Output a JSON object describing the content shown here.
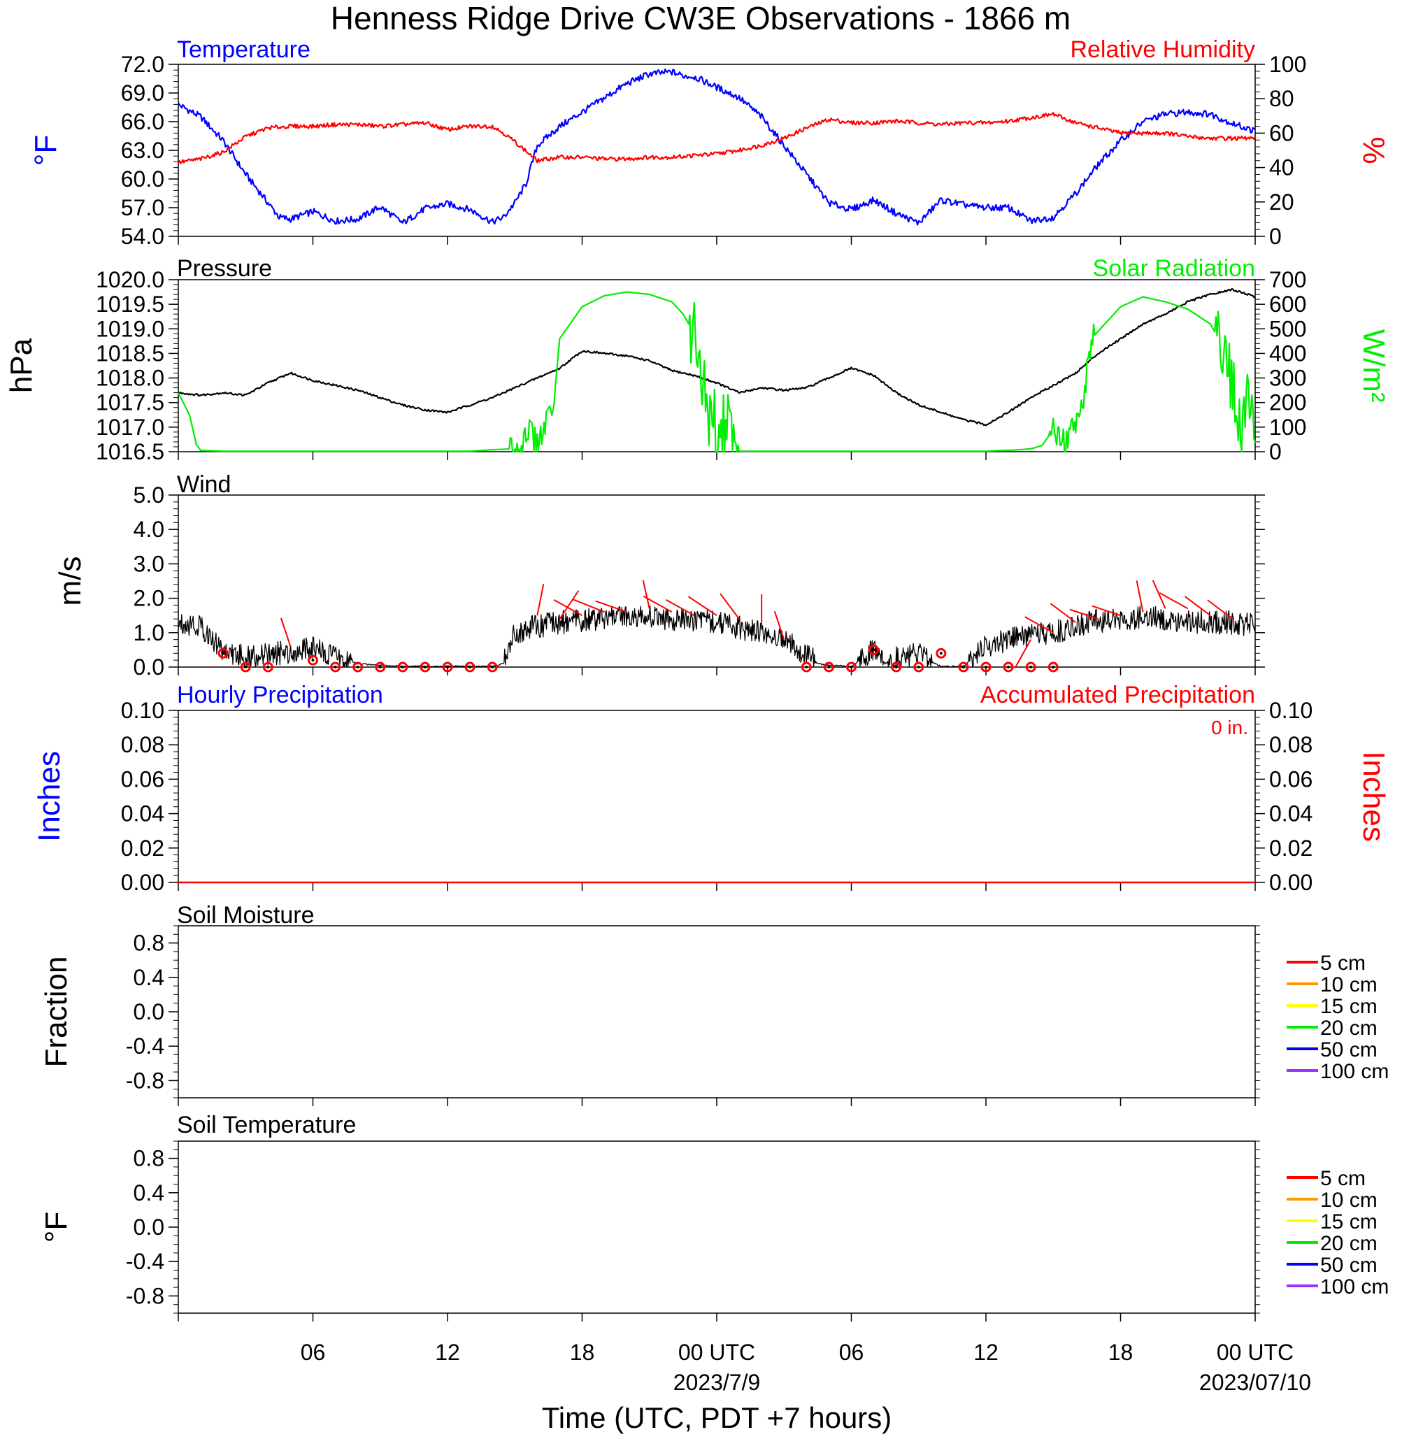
{
  "title": "Henness Ridge Drive CW3E Observations - 1866 m",
  "xaxis": {
    "ticks": [
      {
        "h": 6,
        "label": "06"
      },
      {
        "h": 12,
        "label": "12"
      },
      {
        "h": 18,
        "label": "18"
      },
      {
        "h": 24,
        "label": "00 UTC",
        "sub": "2023/7/9"
      },
      {
        "h": 30,
        "label": "06"
      },
      {
        "h": 36,
        "label": "12"
      },
      {
        "h": 42,
        "label": "18"
      },
      {
        "h": 48,
        "label": "00 UTC",
        "sub": "2023/07/10"
      }
    ],
    "label": "Time (UTC, PDT +7 hours)"
  },
  "panels": {
    "temperature": {
      "left_title": "Temperature",
      "right_title": "Relative Humidity",
      "left_unit": "°F",
      "right_unit": "%",
      "left_ticks": [
        "72.0",
        "69.0",
        "66.0",
        "63.0",
        "60.0",
        "57.0",
        "54.0"
      ],
      "right_ticks": [
        "100",
        "80",
        "60",
        "40",
        "20",
        "0"
      ]
    },
    "pressure": {
      "left_title": "Pressure",
      "right_title": "Solar Radiation",
      "left_unit": "hPa",
      "right_unit": "W/m²",
      "left_ticks": [
        "1020.0",
        "1019.5",
        "1019.0",
        "1018.5",
        "1018.0",
        "1017.5",
        "1017.0",
        "1016.5"
      ],
      "right_ticks": [
        "700",
        "600",
        "500",
        "400",
        "300",
        "200",
        "100",
        "0"
      ]
    },
    "wind": {
      "left_title": "Wind",
      "left_unit": "m/s",
      "left_ticks": [
        "5.0",
        "4.0",
        "3.0",
        "2.0",
        "1.0",
        "0.0"
      ]
    },
    "precip": {
      "left_title": "Hourly Precipitation",
      "right_title": "Accumulated Precipitation",
      "accum_text": "0 in.",
      "left_unit": "Inches",
      "right_unit": "Inches",
      "left_ticks": [
        "0.10",
        "0.08",
        "0.06",
        "0.04",
        "0.02",
        "0.00"
      ],
      "right_ticks": [
        "0.10",
        "0.08",
        "0.06",
        "0.04",
        "0.02",
        "0.00"
      ]
    },
    "soil_moisture": {
      "left_title": "Soil Moisture",
      "left_unit": "Fraction",
      "left_ticks": [
        "0.8",
        "0.4",
        "0.0",
        "-0.4",
        "-0.8"
      ]
    },
    "soil_temperature": {
      "left_title": "Soil Temperature",
      "left_unit": "°F",
      "left_ticks": [
        "0.8",
        "0.4",
        "0.0",
        "-0.4",
        "-0.8"
      ]
    }
  },
  "soil_legend": [
    {
      "label": "5 cm",
      "color": "#ff0000"
    },
    {
      "label": "10 cm",
      "color": "#ff9900"
    },
    {
      "label": "15 cm",
      "color": "#ffff00"
    },
    {
      "label": "20 cm",
      "color": "#00ee00"
    },
    {
      "label": "50 cm",
      "color": "#0000ff"
    },
    {
      "label": "100 cm",
      "color": "#9933ff"
    }
  ],
  "colors": {
    "temperature": "#0000ff",
    "humidity": "#ff0000",
    "pressure": "#000000",
    "solar": "#00ee00",
    "wind": "#000000",
    "barb": "#ff0000",
    "accum": "#ff0000"
  },
  "chart_data": [
    {
      "type": "line",
      "title": "Temperature",
      "ylabel": "°F",
      "ylim": [
        54,
        72
      ],
      "x_unit": "hours since 2023-07-08 00 UTC",
      "xlim": [
        0,
        48
      ],
      "series": [
        {
          "name": "Temperature",
          "x": [
            0,
            1,
            2,
            3,
            4,
            4.5,
            5,
            6,
            7,
            8,
            9,
            10,
            11,
            12,
            13,
            14,
            14.5,
            15,
            15.5,
            16,
            17,
            18,
            19,
            20,
            21,
            22,
            22.5,
            23,
            24,
            25,
            26,
            27,
            28,
            29,
            30,
            31,
            32,
            33,
            34,
            35,
            36,
            37,
            38,
            39,
            40,
            41,
            42,
            43,
            44,
            45,
            46,
            47,
            48
          ],
          "y": [
            67.8,
            66.5,
            64.0,
            60.5,
            57.5,
            56.0,
            55.8,
            56.6,
            55.6,
            55.8,
            57.1,
            55.4,
            56.9,
            57.4,
            56.8,
            55.5,
            56.0,
            57.5,
            59.5,
            63.5,
            65.5,
            67.0,
            68.5,
            70.0,
            71.0,
            71.2,
            70.8,
            70.7,
            69.6,
            68.5,
            66.5,
            63.5,
            60.5,
            57.5,
            56.8,
            57.8,
            56.4,
            55.4,
            57.8,
            57.3,
            57.0,
            57.0,
            55.6,
            56.0,
            58.5,
            61.5,
            64.0,
            66.0,
            66.8,
            67.0,
            66.8,
            65.8,
            65.0
          ]
        }
      ]
    },
    {
      "type": "line",
      "title": "Relative Humidity",
      "ylabel": "%",
      "ylim": [
        0,
        100
      ],
      "series": [
        {
          "name": "Relative Humidity",
          "x": [
            0,
            1,
            2,
            3,
            4,
            5,
            6,
            7,
            8,
            9,
            10,
            11,
            12,
            13,
            14,
            14.5,
            15,
            16,
            17,
            18,
            19,
            20,
            21,
            22,
            23,
            24,
            25,
            26,
            27,
            28,
            29,
            30,
            31,
            32,
            33,
            34,
            35,
            36,
            37,
            38,
            39,
            40,
            41,
            42,
            43,
            44,
            45,
            46,
            47,
            48
          ],
          "y": [
            43,
            45,
            49,
            58,
            63,
            64,
            64,
            65,
            65,
            64,
            65,
            66,
            62,
            64,
            64,
            60,
            55,
            44,
            46,
            46,
            45,
            45,
            46,
            46,
            47,
            48,
            50,
            53,
            57,
            63,
            68,
            66,
            66,
            67,
            66,
            65,
            66,
            66,
            67,
            69,
            71,
            66,
            63,
            60,
            60,
            60,
            58,
            57,
            57,
            57
          ]
        }
      ]
    },
    {
      "type": "line",
      "title": "Pressure",
      "ylabel": "hPa",
      "ylim": [
        1016.5,
        1020
      ],
      "series": [
        {
          "name": "Pressure",
          "x": [
            0,
            1,
            2,
            3,
            4,
            5,
            6,
            7,
            8,
            9,
            10,
            11,
            12,
            13,
            14,
            15,
            16,
            17,
            18,
            19,
            20,
            21,
            22,
            23,
            24,
            25,
            26,
            27,
            28,
            29,
            30,
            31,
            32,
            33,
            34,
            35,
            36,
            37,
            38,
            39,
            40,
            41,
            42,
            43,
            44,
            45,
            46,
            47,
            48
          ],
          "y": [
            1017.7,
            1017.65,
            1017.7,
            1017.65,
            1017.9,
            1018.1,
            1017.95,
            1017.85,
            1017.75,
            1017.6,
            1017.45,
            1017.35,
            1017.3,
            1017.45,
            1017.6,
            1017.8,
            1018.0,
            1018.2,
            1018.55,
            1018.5,
            1018.45,
            1018.35,
            1018.15,
            1018.05,
            1017.9,
            1017.7,
            1017.8,
            1017.75,
            1017.8,
            1018.0,
            1018.2,
            1018.05,
            1017.7,
            1017.45,
            1017.3,
            1017.15,
            1017.05,
            1017.3,
            1017.6,
            1017.85,
            1018.1,
            1018.5,
            1018.8,
            1019.1,
            1019.3,
            1019.55,
            1019.7,
            1019.8,
            1019.65
          ]
        }
      ]
    },
    {
      "type": "line",
      "title": "Solar Radiation",
      "ylabel": "W/m²",
      "ylim": [
        0,
        700
      ],
      "series": [
        {
          "name": "Solar Radiation",
          "x": [
            0,
            0.5,
            0.8,
            1,
            2,
            6,
            10,
            13,
            14,
            14.5,
            15,
            15.3,
            15.5,
            16,
            16.4,
            16.7,
            17,
            18,
            19,
            20,
            21,
            22,
            22.5,
            23,
            23.3,
            23.6,
            24,
            24.4,
            24.8,
            25,
            26,
            30,
            36,
            37,
            37.5,
            38,
            38.5,
            39,
            39.5,
            40,
            40.3,
            40.7,
            41,
            42,
            43,
            44,
            45,
            46,
            46.5,
            47,
            47.3,
            47.6,
            48
          ],
          "y": [
            240,
            150,
            30,
            5,
            2,
            2,
            2,
            2,
            8,
            10,
            12,
            25,
            90,
            40,
            120,
            160,
            460,
            590,
            635,
            650,
            640,
            610,
            560,
            480,
            300,
            150,
            120,
            140,
            20,
            2,
            2,
            2,
            2,
            6,
            8,
            12,
            25,
            90,
            40,
            120,
            170,
            460,
            490,
            590,
            630,
            610,
            580,
            520,
            440,
            250,
            80,
            180,
            150
          ]
        }
      ]
    },
    {
      "type": "line",
      "title": "Wind",
      "ylabel": "m/s",
      "ylim": [
        0,
        5
      ],
      "series": [
        {
          "name": "Wind speed",
          "x": [
            0,
            1,
            1.5,
            2,
            2.5,
            3,
            4,
            5,
            6,
            7,
            8,
            9,
            10,
            11,
            12,
            13,
            14,
            14.5,
            15,
            16,
            17,
            18,
            19,
            20,
            21,
            22,
            23,
            24,
            25,
            26,
            27,
            27.5,
            28,
            28.5,
            29,
            30,
            31,
            31.5,
            32,
            33,
            34,
            35,
            36,
            37,
            38,
            39,
            40,
            41,
            42,
            43,
            44,
            45,
            46,
            47,
            48
          ],
          "y": [
            1.3,
            1.2,
            0.8,
            0.5,
            0.35,
            0.3,
            0.35,
            0.45,
            0.55,
            0.3,
            0.1,
            0.05,
            0.02,
            0.02,
            0.02,
            0.02,
            0.02,
            0.1,
            1.0,
            1.2,
            1.3,
            1.35,
            1.4,
            1.45,
            1.45,
            1.4,
            1.35,
            1.3,
            1.15,
            1.0,
            0.8,
            0.6,
            0.35,
            0.1,
            0.05,
            0.02,
            0.5,
            0.1,
            0.3,
            0.35,
            0.02,
            0.02,
            0.6,
            0.8,
            0.9,
            1.0,
            1.2,
            1.35,
            1.4,
            1.45,
            1.4,
            1.35,
            1.3,
            1.3,
            1.2
          ]
        },
        {
          "name": "Calm markers",
          "x": [
            2,
            3,
            4,
            6,
            7,
            8,
            9,
            10,
            11,
            12,
            13,
            14,
            28,
            29,
            30,
            31,
            32,
            33,
            34,
            35,
            36,
            37,
            38,
            39
          ],
          "y": [
            0.4,
            0,
            0,
            0.2,
            0,
            0,
            0,
            0,
            0,
            0,
            0,
            0,
            0,
            0,
            0,
            0.5,
            0,
            0,
            0.4,
            0,
            0,
            0,
            0,
            0
          ]
        }
      ]
    },
    {
      "type": "line",
      "title": "Hourly Precipitation",
      "ylabel": "Inches",
      "ylim": [
        0,
        0.1
      ],
      "series": [
        {
          "name": "Accumulated Precipitation",
          "x": [
            0,
            48
          ],
          "y": [
            0,
            0
          ]
        }
      ]
    },
    {
      "type": "line",
      "title": "Soil Moisture",
      "ylabel": "Fraction",
      "ylim": [
        -1,
        1
      ],
      "series": []
    },
    {
      "type": "line",
      "title": "Soil Temperature",
      "ylabel": "°F",
      "ylim": [
        -1,
        1
      ],
      "series": []
    }
  ]
}
